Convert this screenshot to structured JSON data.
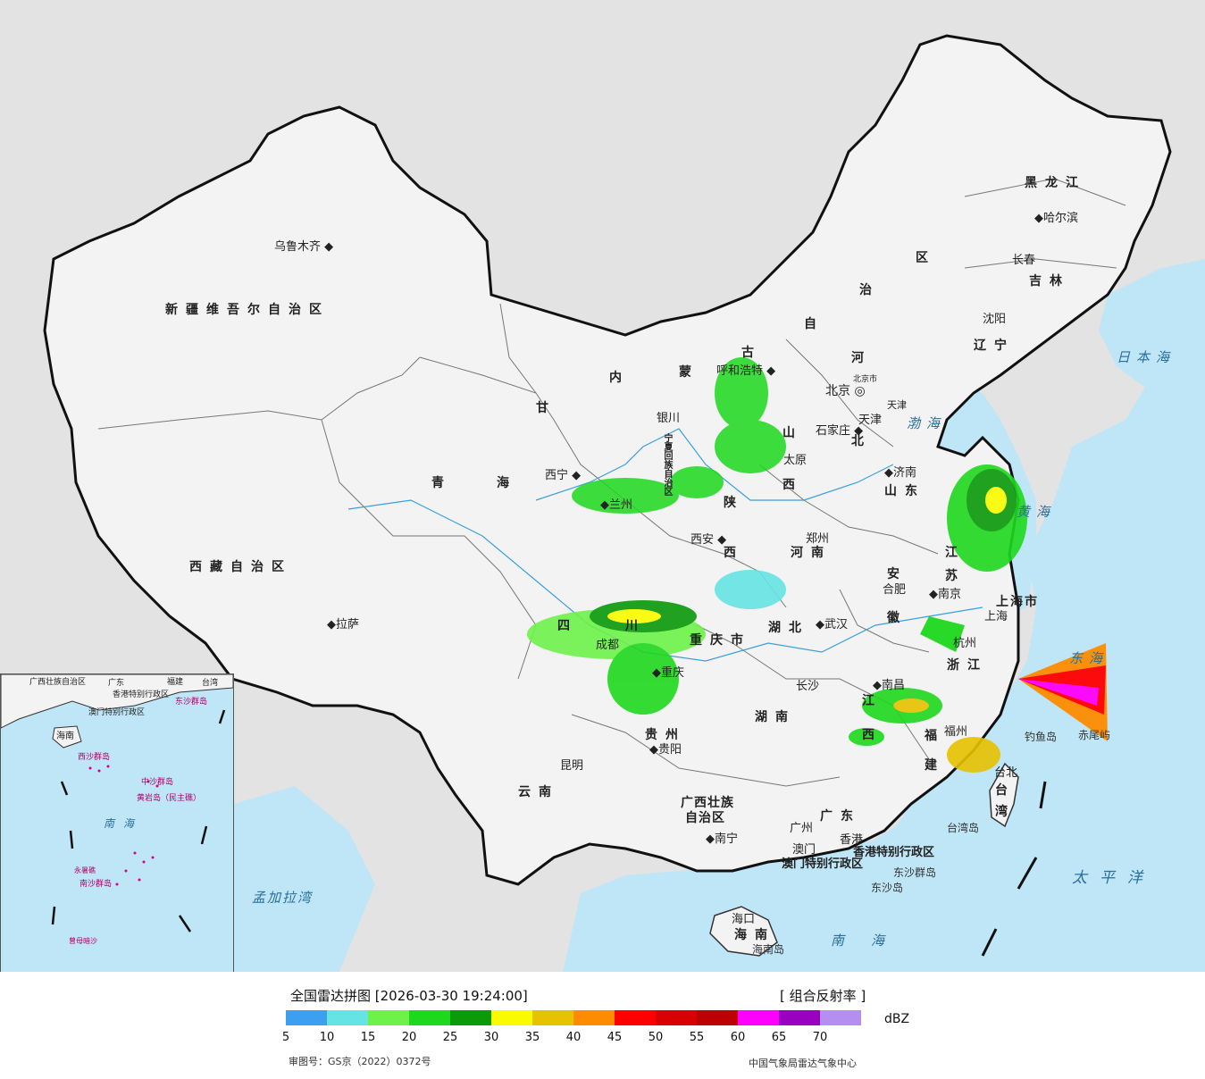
{
  "legend": {
    "title": "全国雷达拼图 [2026-03-30 19:24:00]",
    "product": "[ 组合反射率 ]",
    "unit": "dBZ",
    "approval": "审图号：GS京（2022）0372号",
    "source": "中国气象局雷达气象中心",
    "colors": [
      "#3c9ff0",
      "#66e4e4",
      "#6ef24a",
      "#1ed81e",
      "#0a9a0a",
      "#fbfb00",
      "#e6c200",
      "#ff8c00",
      "#ff0000",
      "#d90000",
      "#bd0000",
      "#ff00ff",
      "#9a00c0",
      "#b48ef0"
    ],
    "ticks": [
      "5",
      "10",
      "15",
      "20",
      "25",
      "30",
      "35",
      "40",
      "45",
      "50",
      "55",
      "60",
      "65",
      "70"
    ]
  },
  "provinces": {
    "xinjiang": "新疆维吾尔自治区",
    "xizang": "西藏自治区",
    "qinghai_1": "青",
    "qinghai_2": "海",
    "gansu": "甘",
    "neimenggu_1": "内",
    "neimenggu_2": "蒙",
    "neimenggu_3": "古",
    "neimenggu_4": "自",
    "neimenggu_5": "治",
    "neimenggu_6": "区",
    "heilongjiang": "黑龙江",
    "jilin": "吉林",
    "liaoning": "辽宁",
    "hebei_1": "河",
    "hebei_2": "北",
    "shanxi_1": "山",
    "shanxi_2": "西",
    "shaanxi_1": "陕",
    "shaanxi_2": "西",
    "shandong": "山东",
    "henan": "河南",
    "jiangsu_1": "江",
    "jiangsu_2": "苏",
    "anhui_1": "安",
    "anhui_2": "徽",
    "hubei": "湖北",
    "sichuan_1": "四",
    "sichuan_2": "川",
    "chongqing": "重庆市",
    "zhejiang": "浙江",
    "jiangxi_1": "江",
    "jiangxi_2": "西",
    "hunan": "湖南",
    "guizhou": "贵州",
    "yunnan": "云南",
    "fujian_1": "福",
    "fujian_2": "建",
    "guangxi_1": "广西壮族",
    "guangxi_2": "自治区",
    "guangdong": "广东",
    "hainan": "海南",
    "taiwan_1": "台",
    "taiwan_2": "湾",
    "ningxia": "宁夏回族自治区",
    "shanghai": "上海市",
    "tianjin": "天津",
    "beijing": "北京市",
    "hk": "香港特别行政区",
    "macao": "澳门特别行政区"
  },
  "cities": {
    "urumqi": "乌鲁木齐",
    "lhasa": "拉萨",
    "xining": "西宁",
    "lanzhou": "兰州",
    "yinchuan": "银川",
    "hohhot": "呼和浩特",
    "beijing": "北京",
    "tianjin": "天津",
    "shijiazhuang": "石家庄",
    "taiyuan": "太原",
    "jinan": "济南",
    "zhengzhou": "郑州",
    "xian": "西安",
    "harbin": "哈尔滨",
    "changchun": "长春",
    "shenyang": "沈阳",
    "nanjing": "南京",
    "hefei": "合肥",
    "shanghai": "上海",
    "hangzhou": "杭州",
    "wuhan": "武汉",
    "chengdu": "成都",
    "chongqing": "重庆",
    "changsha": "长沙",
    "nanchang": "南昌",
    "fuzhou": "福州",
    "guiyang": "贵阳",
    "kunming": "昆明",
    "nanning": "南宁",
    "guangzhou": "广州",
    "macao": "澳门",
    "hongkong": "香港",
    "haikou": "海口",
    "taipei": "台北"
  },
  "seas": {
    "japan_sea": "日本海",
    "bohai": "渤海",
    "yellow_sea": "黄海",
    "east_sea": "东海",
    "pacific": "太平洋",
    "south_sea": "南海",
    "bengal": "孟加拉湾"
  },
  "islands": {
    "diaoyu": "钓鱼岛",
    "chiwei": "赤尾屿",
    "taiwan_island": "台湾岛",
    "dongsha_islands": "东沙群岛",
    "dongsha_island": "东沙岛",
    "hainan_island": "海南岛"
  },
  "inset": {
    "guangxi": "广西壮族自治区",
    "guangdong": "广东",
    "fujian": "福建",
    "taiwan": "台湾",
    "hk": "香港特别行政区",
    "macao": "澳门特别行政区",
    "hainan": "海南",
    "dongsha": "东沙群岛",
    "xisha": "西沙群岛",
    "zhongsha": "中沙群岛",
    "huangyan": "黄岩岛（民主礁）",
    "south_sea": "南海",
    "nansha": "南沙群岛",
    "yongshu": "永暑礁",
    "zengmu": "曾母暗沙"
  }
}
